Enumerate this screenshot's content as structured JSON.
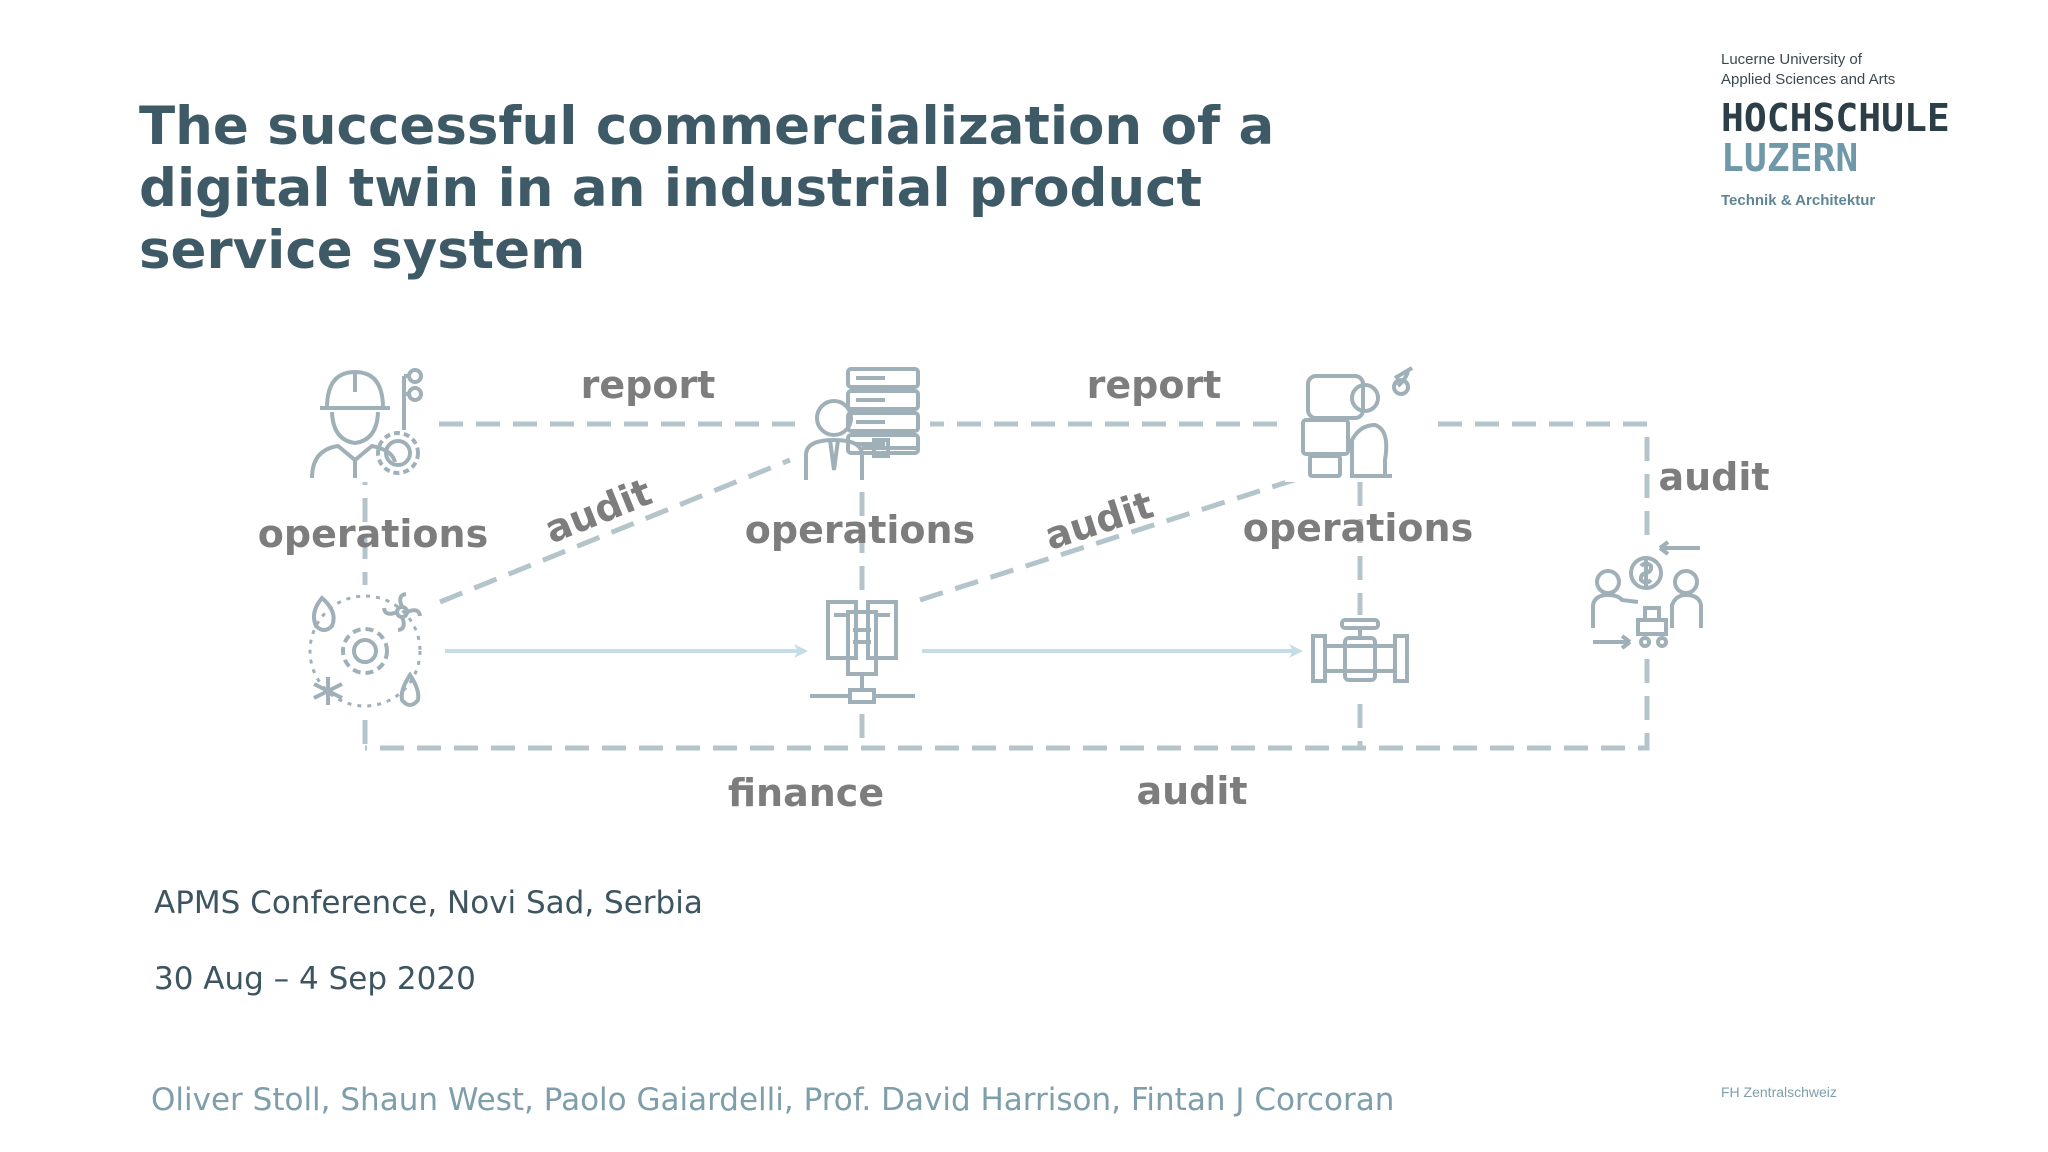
{
  "slide": {
    "title_lines": [
      "The successful commercialization of a",
      "digital twin in an industrial product",
      "service system"
    ],
    "logo": {
      "university_lines": [
        "Lucerne University of",
        "Applied Sciences and Arts"
      ],
      "hochschule": "HOCHSCHULE",
      "luzern": "LUZERN",
      "department": "Technik & Architektur"
    },
    "diagram": {
      "labels": {
        "report_1": "report",
        "report_2": "report",
        "audit_1": "audit",
        "audit_2": "audit",
        "audit_3": "audit",
        "audit_4": "audit",
        "operations_1": "operations",
        "operations_2": "operations",
        "operations_3": "operations",
        "finance": "finance"
      },
      "icons": [
        "engineer-icon",
        "server-person-icon",
        "technician-computer-icon",
        "climate-controls-icon",
        "document-network-icon",
        "valve-pipe-icon",
        "trade-exchange-icon"
      ],
      "colors": {
        "dashed_line": "#b3c4cb",
        "arrow": "#c5dde6",
        "label": "#7d7d7d",
        "icon": "#9fb0b8"
      }
    },
    "conference": "APMS Conference, Novi Sad, Serbia",
    "date": "30 Aug – 4 Sep 2020",
    "authors": "Oliver Stoll, Shaun West, Paolo Gaiardelli, Prof. David Harrison, Fintan J Corcoran",
    "footer_org": "FH Zentralschweiz"
  }
}
